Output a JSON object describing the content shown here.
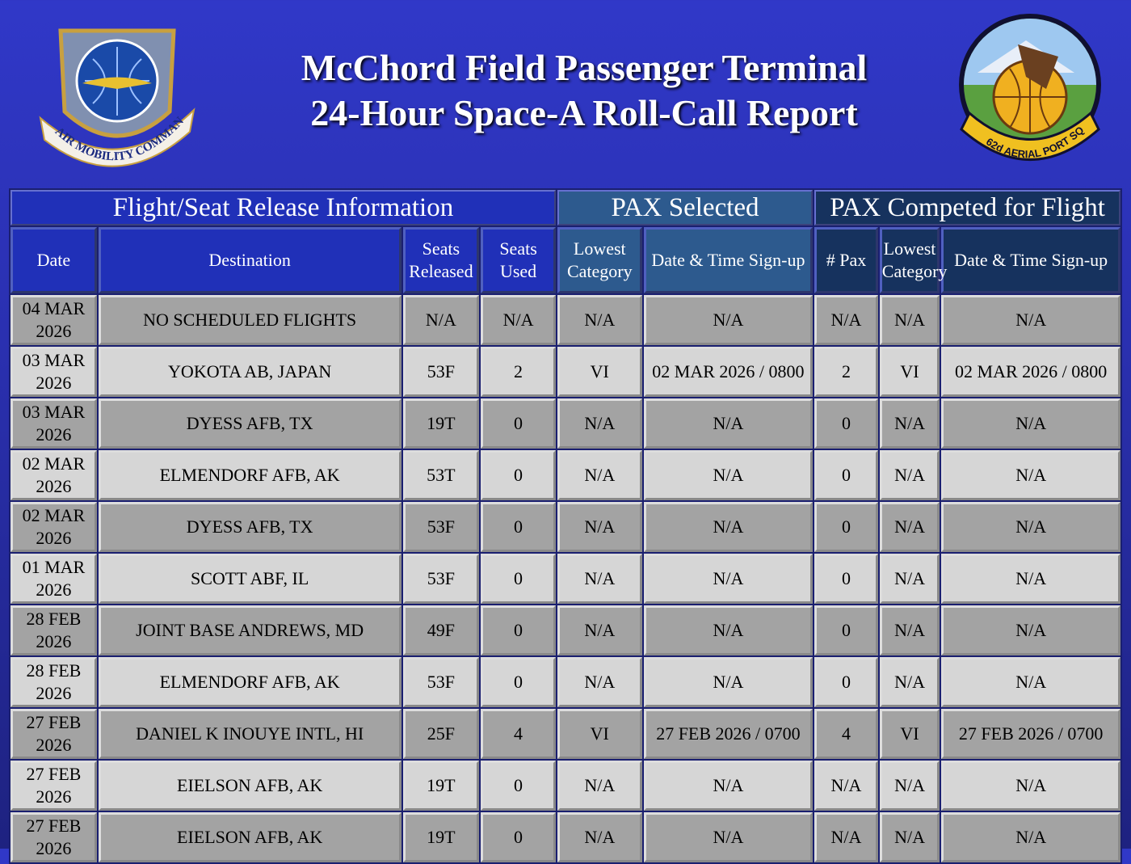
{
  "header": {
    "title_lines": [
      "McChord Field Passenger Terminal",
      "24-Hour Space-A Roll-Call Report"
    ],
    "left_logo_text": "AIR MOBILITY COMMAND",
    "right_logo_text": "62d AERIAL PORT SQ"
  },
  "table": {
    "groups": [
      "Flight/Seat Release Information",
      "PAX Selected",
      "PAX Competed for Flight"
    ],
    "columns": [
      "Date",
      "Destination",
      "Seats Released",
      "Seats Used",
      "Lowest Category",
      "Date & Time Sign-up",
      "# Pax",
      "Lowest Category",
      "Date & Time Sign-up"
    ],
    "rows": [
      [
        "04 MAR 2026",
        "NO SCHEDULED FLIGHTS",
        "N/A",
        "N/A",
        "N/A",
        "N/A",
        "N/A",
        "N/A",
        "N/A"
      ],
      [
        "03 MAR 2026",
        "YOKOTA AB, JAPAN",
        "53F",
        "2",
        "VI",
        "02 MAR 2026 / 0800",
        "2",
        "VI",
        "02 MAR 2026 / 0800"
      ],
      [
        "03 MAR 2026",
        "DYESS AFB, TX",
        "19T",
        "0",
        "N/A",
        "N/A",
        "0",
        "N/A",
        "N/A"
      ],
      [
        "02 MAR 2026",
        "ELMENDORF AFB, AK",
        "53T",
        "0",
        "N/A",
        "N/A",
        "0",
        "N/A",
        "N/A"
      ],
      [
        "02 MAR 2026",
        "DYESS AFB, TX",
        "53F",
        "0",
        "N/A",
        "N/A",
        "0",
        "N/A",
        "N/A"
      ],
      [
        "01 MAR 2026",
        "SCOTT ABF, IL",
        "53F",
        "0",
        "N/A",
        "N/A",
        "0",
        "N/A",
        "N/A"
      ],
      [
        "28 FEB 2026",
        "JOINT BASE ANDREWS, MD",
        "49F",
        "0",
        "N/A",
        "N/A",
        "0",
        "N/A",
        "N/A"
      ],
      [
        "28 FEB 2026",
        "ELMENDORF AFB, AK",
        "53F",
        "0",
        "N/A",
        "N/A",
        "0",
        "N/A",
        "N/A"
      ],
      [
        "27 FEB 2026",
        "DANIEL K INOUYE INTL, HI",
        "25F",
        "4",
        "VI",
        "27 FEB 2026 / 0700",
        "4",
        "VI",
        "27 FEB 2026 / 0700"
      ],
      [
        "27 FEB 2026",
        "EIELSON AFB, AK",
        "19T",
        "0",
        "N/A",
        "N/A",
        "N/A",
        "N/A",
        "N/A"
      ],
      [
        "27 FEB 2026",
        "EIELSON AFB, AK",
        "19T",
        "0",
        "N/A",
        "N/A",
        "N/A",
        "N/A",
        "N/A"
      ]
    ]
  }
}
